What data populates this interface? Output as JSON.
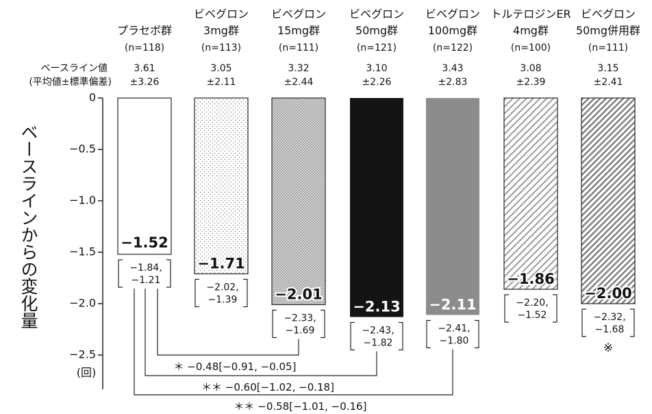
{
  "chart_data": {
    "type": "bar",
    "ylabel": "ベースラインからの変化量",
    "y_unit": "(回)",
    "ylim": [
      -2.5,
      0
    ],
    "yticks": [
      0,
      -0.5,
      -1.0,
      -1.5,
      -2.0,
      -2.5
    ],
    "ytick_labels": [
      "0",
      "−0.5",
      "−1.0",
      "−1.5",
      "−2.0",
      "−2.5"
    ],
    "baseline_row_labels": [
      "ベースライン値",
      "(平均値±標準偏差)"
    ],
    "categories": [
      {
        "name": [
          "プラセボ群"
        ],
        "n": "(n=118)",
        "baseline_mean": "3.61",
        "baseline_sd": "±3.26",
        "value": -1.52,
        "value_label": "−1.52",
        "ci": [
          "−1.84,",
          "−1.21"
        ],
        "ci_values": [
          -1.84,
          -1.21
        ],
        "pattern": "white",
        "label_inside": false,
        "note": ""
      },
      {
        "name": [
          "ビベグロン",
          "3mg群"
        ],
        "n": "(n=113)",
        "baseline_mean": "3.05",
        "baseline_sd": "±2.11",
        "value": -1.71,
        "value_label": "−1.71",
        "ci": [
          "−2.02,",
          "−1.39"
        ],
        "ci_values": [
          -2.02,
          -1.39
        ],
        "pattern": "sparse-dots",
        "label_inside": true,
        "note": ""
      },
      {
        "name": [
          "ビベグロン",
          "15mg群"
        ],
        "n": "(n=111)",
        "baseline_mean": "3.32",
        "baseline_sd": "±2.44",
        "value": -2.01,
        "value_label": "−2.01",
        "ci": [
          "−2.33,",
          "−1.69"
        ],
        "ci_values": [
          -2.33,
          -1.69
        ],
        "pattern": "dense-dots",
        "label_inside": true,
        "note": ""
      },
      {
        "name": [
          "ビベグロン",
          "50mg群"
        ],
        "n": "(n=121)",
        "baseline_mean": "3.10",
        "baseline_sd": "±2.26",
        "value": -2.13,
        "value_label": "−2.13",
        "ci": [
          "−2.43,",
          "−1.82"
        ],
        "ci_values": [
          -2.43,
          -1.82
        ],
        "pattern": "black",
        "label_inside": true,
        "note": ""
      },
      {
        "name": [
          "ビベグロン",
          "100mg群"
        ],
        "n": "(n=122)",
        "baseline_mean": "3.43",
        "baseline_sd": "±2.83",
        "value": -2.11,
        "value_label": "−2.11",
        "ci": [
          "−2.41,",
          "−1.80"
        ],
        "ci_values": [
          -2.41,
          -1.8
        ],
        "pattern": "gray",
        "label_inside": true,
        "note": ""
      },
      {
        "name": [
          "トルテロジンER",
          "4mg群"
        ],
        "n": "(n=100)",
        "baseline_mean": "3.08",
        "baseline_sd": "±2.39",
        "value": -1.86,
        "value_label": "−1.86",
        "ci": [
          "−2.20,",
          "−1.52"
        ],
        "ci_values": [
          -2.2,
          -1.52
        ],
        "pattern": "hatch-light",
        "label_inside": true,
        "note": ""
      },
      {
        "name": [
          "ビベグロン",
          "50mg併用群"
        ],
        "n": "(n=111)",
        "baseline_mean": "3.15",
        "baseline_sd": "±2.41",
        "value": -2.0,
        "value_label": "−2.00",
        "ci": [
          "−2.32,",
          "−1.68"
        ],
        "ci_values": [
          -2.32,
          -1.68
        ],
        "pattern": "hatch-dark",
        "label_inside": true,
        "note": "※"
      }
    ],
    "comparisons": [
      {
        "from": 0,
        "to": 2,
        "label": "＊ −0.48[−0.91, −0.05]",
        "difference": -0.48,
        "ci": [
          -0.91,
          -0.05
        ],
        "significance": "*"
      },
      {
        "from": 0,
        "to": 3,
        "label": "＊＊ −0.60[−1.02, −0.18]",
        "difference": -0.6,
        "ci": [
          -1.02,
          -0.18
        ],
        "significance": "**"
      },
      {
        "from": 0,
        "to": 4,
        "label": "＊＊ −0.58[−1.01, −0.16]",
        "difference": -0.58,
        "ci": [
          -1.01,
          -0.16
        ],
        "significance": "**"
      }
    ],
    "grid": false,
    "legend": "none"
  }
}
